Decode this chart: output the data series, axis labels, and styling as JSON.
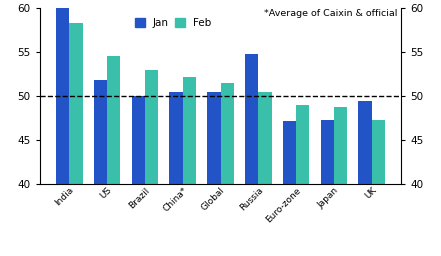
{
  "categories": [
    "India",
    "US",
    "Brazil",
    "China*",
    "Global",
    "Russia",
    "Euro-zone",
    "Japan",
    "UK"
  ],
  "jan_values": [
    60.2,
    51.8,
    50.0,
    50.5,
    50.5,
    54.8,
    47.2,
    47.3,
    49.4
  ],
  "feb_values": [
    58.3,
    54.5,
    53.0,
    52.2,
    51.5,
    50.5,
    49.0,
    48.7,
    47.3
  ],
  "jan_color": "#2354c7",
  "feb_color": "#3abfaa",
  "ylim": [
    40,
    60
  ],
  "yticks": [
    40,
    45,
    50,
    55,
    60
  ],
  "dashed_line_y": 50,
  "annotation": "*Average of Caixin & official",
  "legend_jan": "Jan",
  "legend_feb": "Feb",
  "bar_width": 0.35,
  "figsize": [
    4.41,
    2.56
  ],
  "dpi": 100
}
